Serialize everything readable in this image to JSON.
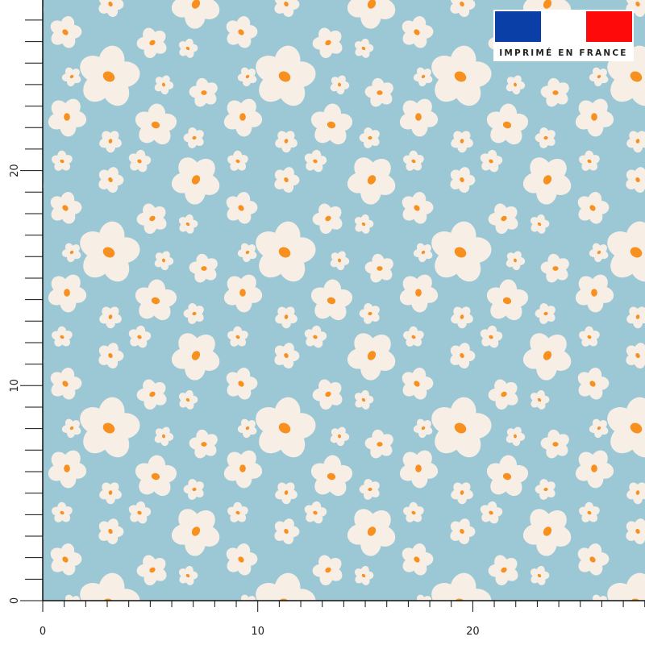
{
  "ruler": {
    "x_labels": [
      "0",
      "10",
      "20"
    ],
    "y_labels": [
      "0",
      "10",
      "20"
    ]
  },
  "badge": {
    "text": "IMPRIMÉ EN FRANCE"
  }
}
